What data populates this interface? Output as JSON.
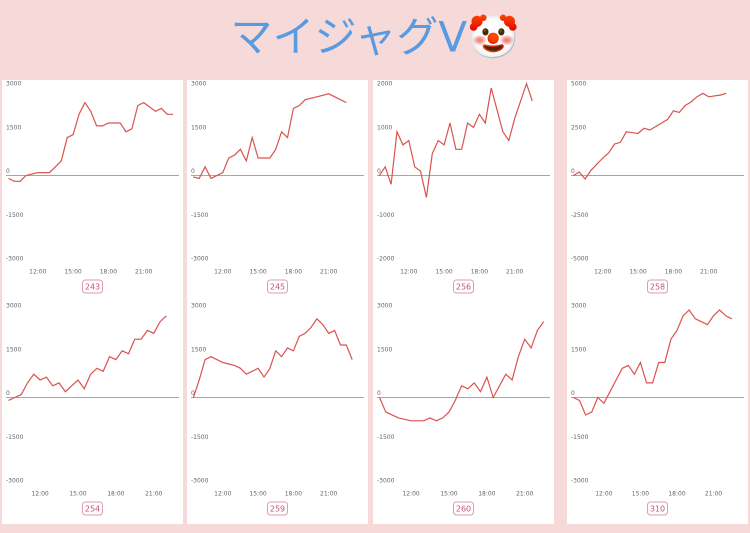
{
  "title": "マイジャグV🤡",
  "chart_data": [
    {
      "type": "line",
      "label": "243",
      "color": "#d9534f",
      "grid": false,
      "x": [
        9.5,
        10,
        10.5,
        11,
        12,
        13,
        13.5,
        14,
        14.5,
        15,
        15.5,
        16,
        16.5,
        17,
        17.5,
        18,
        19,
        19.5,
        20,
        20.5,
        21,
        22,
        22.5,
        23,
        23.5
      ],
      "values": [
        -100,
        -200,
        -200,
        0,
        100,
        100,
        300,
        500,
        1300,
        1400,
        2100,
        2500,
        2200,
        1700,
        1700,
        1800,
        1800,
        1500,
        1600,
        2400,
        2500,
        2200,
        2300,
        2100,
        2100
      ],
      "xlim": [
        9.3,
        24
      ],
      "ylim": [
        -3000,
        3000
      ],
      "xticks": [
        {
          "value": 12,
          "label": "12:00"
        },
        {
          "value": 15,
          "label": "15:00"
        },
        {
          "value": 18,
          "label": "18:00"
        },
        {
          "value": 21,
          "label": "21:00"
        }
      ],
      "yticks": [
        3000,
        1500,
        0,
        -1500,
        -3000
      ]
    },
    {
      "type": "line",
      "label": "245",
      "color": "#d9534f",
      "grid": false,
      "x": [
        9.5,
        10,
        10.5,
        11,
        12,
        12.5,
        13,
        13.5,
        14,
        14.5,
        15,
        16,
        16.5,
        17,
        17.5,
        18,
        18.5,
        19,
        20,
        21,
        22,
        22.5
      ],
      "values": [
        -50,
        -100,
        300,
        -100,
        100,
        600,
        700,
        900,
        500,
        1300,
        600,
        600,
        900,
        1500,
        1300,
        2300,
        2400,
        2600,
        2700,
        2800,
        2600,
        2500
      ],
      "xlim": [
        9.3,
        24
      ],
      "ylim": [
        -3000,
        3000
      ],
      "xticks": [
        {
          "value": 12,
          "label": "12:00"
        },
        {
          "value": 15,
          "label": "15:00"
        },
        {
          "value": 18,
          "label": "18:00"
        },
        {
          "value": 21,
          "label": "21:00"
        }
      ],
      "yticks": [
        3000,
        1500,
        0,
        -1500,
        -3000
      ]
    },
    {
      "type": "line",
      "label": "256",
      "color": "#d9534f",
      "grid": false,
      "x": [
        9.5,
        10,
        10.5,
        11,
        11.5,
        12,
        12.5,
        13,
        13.5,
        14,
        14.5,
        15,
        15.5,
        16,
        16.5,
        17,
        17.5,
        18,
        18.5,
        19,
        20,
        20.5,
        21,
        22,
        22.5
      ],
      "values": [
        0,
        200,
        -200,
        1000,
        700,
        800,
        200,
        100,
        -500,
        500,
        800,
        700,
        1200,
        600,
        600,
        1200,
        1100,
        1400,
        1200,
        2000,
        1000,
        800,
        1300,
        2100,
        1700
      ],
      "xlim": [
        9.3,
        24
      ],
      "ylim": [
        -2000,
        2000
      ],
      "xticks": [
        {
          "value": 12,
          "label": "12:00"
        },
        {
          "value": 15,
          "label": "15:00"
        },
        {
          "value": 18,
          "label": "18:00"
        },
        {
          "value": 21,
          "label": "21:00"
        }
      ],
      "yticks": [
        2000,
        1000,
        0,
        -1000,
        -2000
      ]
    },
    {
      "type": "line",
      "label": "258",
      "color": "#d9534f",
      "grid": false,
      "x": [
        9.5,
        10,
        10.5,
        11,
        12,
        12.5,
        13,
        13.5,
        14,
        15,
        15.5,
        16,
        17,
        17.5,
        18,
        18.5,
        19,
        19.5,
        20,
        20.5,
        21,
        22,
        22.5
      ],
      "values": [
        0,
        200,
        -200,
        300,
        1000,
        1300,
        1800,
        1900,
        2500,
        2400,
        2700,
        2600,
        3000,
        3200,
        3700,
        3600,
        4000,
        4200,
        4500,
        4700,
        4500,
        4600,
        4700
      ],
      "xlim": [
        9.3,
        24
      ],
      "ylim": [
        -5000,
        5000
      ],
      "xticks": [
        {
          "value": 12,
          "label": "12:00"
        },
        {
          "value": 15,
          "label": "15:00"
        },
        {
          "value": 18,
          "label": "18:00"
        },
        {
          "value": 21,
          "label": "21:00"
        }
      ],
      "yticks": [
        5000,
        2500,
        0,
        -2500,
        -5000
      ]
    },
    {
      "type": "line",
      "label": "254",
      "color": "#d9534f",
      "grid": false,
      "x": [
        9.5,
        10,
        10.5,
        11,
        11.5,
        12,
        12.5,
        13,
        13.5,
        14,
        14.5,
        15,
        15.5,
        16,
        16.5,
        17,
        17.5,
        18,
        18.5,
        19,
        19.5,
        20,
        20.5,
        21,
        21.5,
        22
      ],
      "values": [
        -100,
        0,
        100,
        500,
        800,
        600,
        700,
        400,
        500,
        200,
        400,
        600,
        300,
        800,
        1000,
        900,
        1400,
        1300,
        1600,
        1500,
        2000,
        2000,
        2300,
        2200,
        2600,
        2800
      ],
      "xlim": [
        9.3,
        23
      ],
      "ylim": [
        -3000,
        3000
      ],
      "xticks": [
        {
          "value": 12,
          "label": "12:00"
        },
        {
          "value": 15,
          "label": "15:00"
        },
        {
          "value": 18,
          "label": "18:00"
        },
        {
          "value": 21,
          "label": "21:00"
        }
      ],
      "yticks": [
        3000,
        1500,
        0,
        -1500,
        -3000
      ]
    },
    {
      "type": "line",
      "label": "259",
      "color": "#d9534f",
      "grid": false,
      "x": [
        9.5,
        10,
        10.5,
        11,
        12,
        13,
        13.5,
        14,
        14.5,
        15,
        15.5,
        16,
        16.5,
        17,
        17.5,
        18,
        18.5,
        19,
        19.5,
        20,
        20.5,
        21,
        21.5,
        22,
        22.5,
        23
      ],
      "values": [
        0,
        600,
        1300,
        1400,
        1200,
        1100,
        1000,
        800,
        900,
        1000,
        700,
        1000,
        1600,
        1400,
        1700,
        1600,
        2100,
        2200,
        2400,
        2700,
        2500,
        2200,
        2300,
        1800,
        1800,
        1300
      ],
      "xlim": [
        9.3,
        24
      ],
      "ylim": [
        -3000,
        3000
      ],
      "xticks": [
        {
          "value": 12,
          "label": "12:00"
        },
        {
          "value": 15,
          "label": "15:00"
        },
        {
          "value": 18,
          "label": "18:00"
        },
        {
          "value": 21,
          "label": "21:00"
        }
      ],
      "yticks": [
        3000,
        1500,
        0,
        -1500,
        -3000
      ]
    },
    {
      "type": "line",
      "label": "260",
      "color": "#d9534f",
      "grid": false,
      "x": [
        9.5,
        10,
        11,
        12,
        13,
        13.5,
        14,
        14.5,
        15,
        15.5,
        16,
        16.5,
        17,
        17.5,
        18,
        18.5,
        19,
        19.5,
        20,
        20.5,
        21,
        21.5,
        22,
        22.5
      ],
      "values": [
        0,
        -500,
        -700,
        -800,
        -800,
        -700,
        -800,
        -700,
        -500,
        -100,
        400,
        300,
        500,
        200,
        700,
        0,
        400,
        800,
        600,
        1400,
        2000,
        1700,
        2300,
        2600
      ],
      "xlim": [
        9.3,
        23
      ],
      "ylim": [
        -3000,
        3000
      ],
      "xticks": [
        {
          "value": 12,
          "label": "12:00"
        },
        {
          "value": 15,
          "label": "15:00"
        },
        {
          "value": 18,
          "label": "18:00"
        },
        {
          "value": 21,
          "label": "21:00"
        }
      ],
      "yticks": [
        3000,
        1500,
        0,
        -1500,
        -3000
      ]
    },
    {
      "type": "line",
      "label": "310",
      "color": "#d9534f",
      "grid": false,
      "x": [
        9.5,
        10,
        10.5,
        11,
        11.5,
        12,
        12.5,
        13,
        13.5,
        14,
        14.5,
        15,
        15.5,
        16,
        16.5,
        17,
        17.5,
        18,
        18.5,
        19,
        19.5,
        20,
        20.5,
        21,
        21.5,
        22,
        22.5
      ],
      "values": [
        0,
        -100,
        -600,
        -500,
        0,
        -200,
        200,
        600,
        1000,
        1100,
        800,
        1200,
        500,
        500,
        1200,
        1200,
        2000,
        2300,
        2800,
        3000,
        2700,
        2600,
        2500,
        2800,
        3000,
        2800,
        2700
      ],
      "xlim": [
        9.3,
        23.5
      ],
      "ylim": [
        -3000,
        3000
      ],
      "xticks": [
        {
          "value": 12,
          "label": "12:00"
        },
        {
          "value": 15,
          "label": "15:00"
        },
        {
          "value": 18,
          "label": "18:00"
        },
        {
          "value": 21,
          "label": "21:00"
        }
      ],
      "yticks": [
        3000,
        1500,
        0,
        -1500,
        -3000
      ]
    }
  ]
}
